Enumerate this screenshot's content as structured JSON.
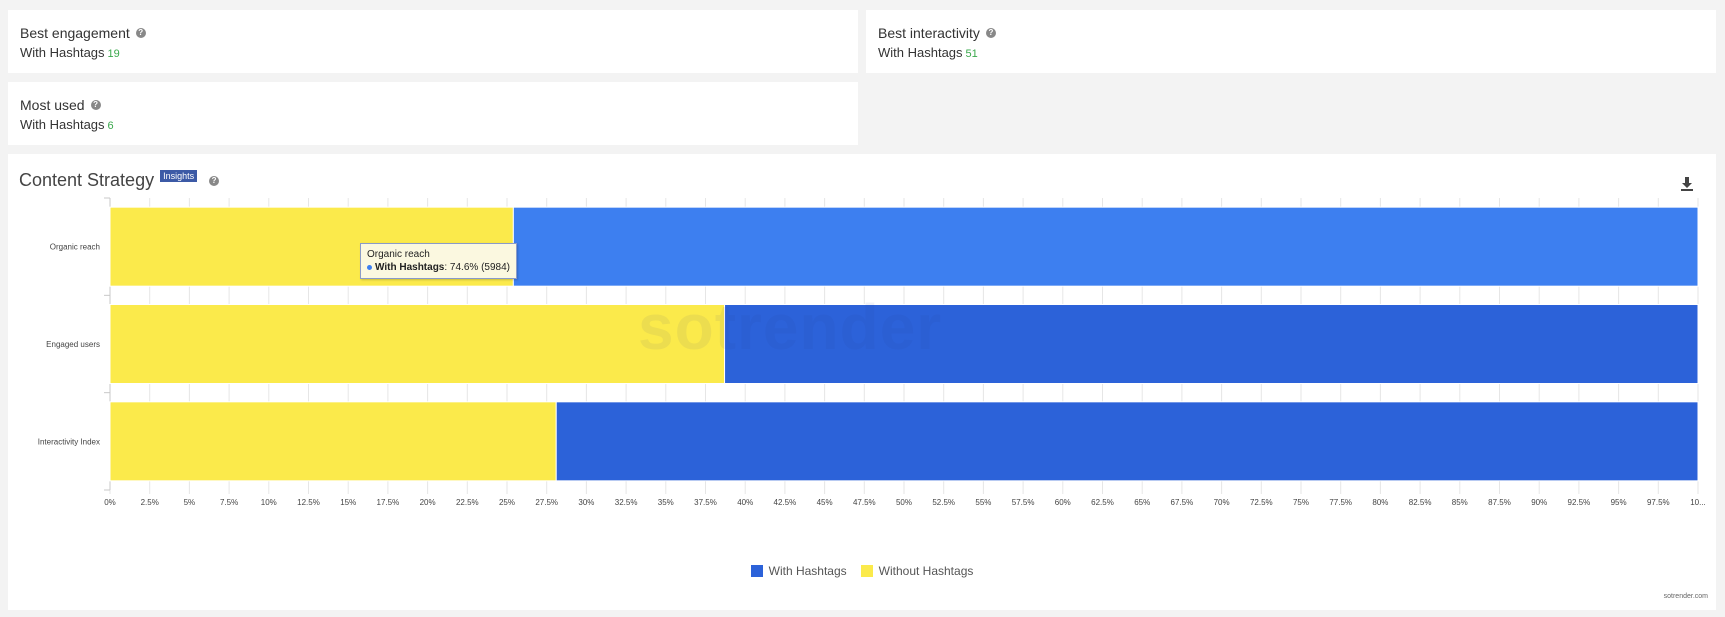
{
  "cards": [
    {
      "title": "Best engagement",
      "label": "With Hashtags",
      "value": "19"
    },
    {
      "title": "Best interactivity",
      "label": "With Hashtags",
      "value": "51"
    },
    {
      "title": "Most used",
      "label": "With Hashtags",
      "value": "6"
    }
  ],
  "strategy": {
    "title": "Content Strategy",
    "badge": "Insights",
    "credit": "sotrender.com",
    "watermark": "sotrender"
  },
  "tooltip": {
    "title": "Organic reach",
    "series": "With Hashtags",
    "value": ": 74.6% (5984)"
  },
  "colors": {
    "with_hashtags": "#2c62d9",
    "with_hashtags_highlight": "#3d7ff0",
    "without_hashtags": "#fbea4b"
  },
  "chart_data": {
    "type": "bar",
    "orientation": "horizontal",
    "stacked": "percent",
    "categories": [
      "Organic reach",
      "Engaged users",
      "Interactivity Index"
    ],
    "series": [
      {
        "name": "Without Hashtags",
        "values": [
          25.4,
          38.7,
          28.1
        ]
      },
      {
        "name": "With Hashtags",
        "values": [
          74.6,
          61.3,
          71.9
        ]
      }
    ],
    "xlim": [
      0,
      100
    ],
    "x_tick_labels": [
      "0%",
      "2.5%",
      "5%",
      "7.5%",
      "10%",
      "12.5%",
      "15%",
      "17.5%",
      "20%",
      "22.5%",
      "25%",
      "27.5%",
      "30%",
      "32.5%",
      "35%",
      "37.5%",
      "40%",
      "42.5%",
      "45%",
      "47.5%",
      "50%",
      "52.5%",
      "55%",
      "57.5%",
      "60%",
      "62.5%",
      "65%",
      "67.5%",
      "70%",
      "72.5%",
      "75%",
      "77.5%",
      "80%",
      "82.5%",
      "85%",
      "87.5%",
      "90%",
      "92.5%",
      "95%",
      "97.5%",
      "10..."
    ],
    "legend": [
      "With Hashtags",
      "Without Hashtags"
    ],
    "legend_position": "bottom-center",
    "grid": true
  }
}
